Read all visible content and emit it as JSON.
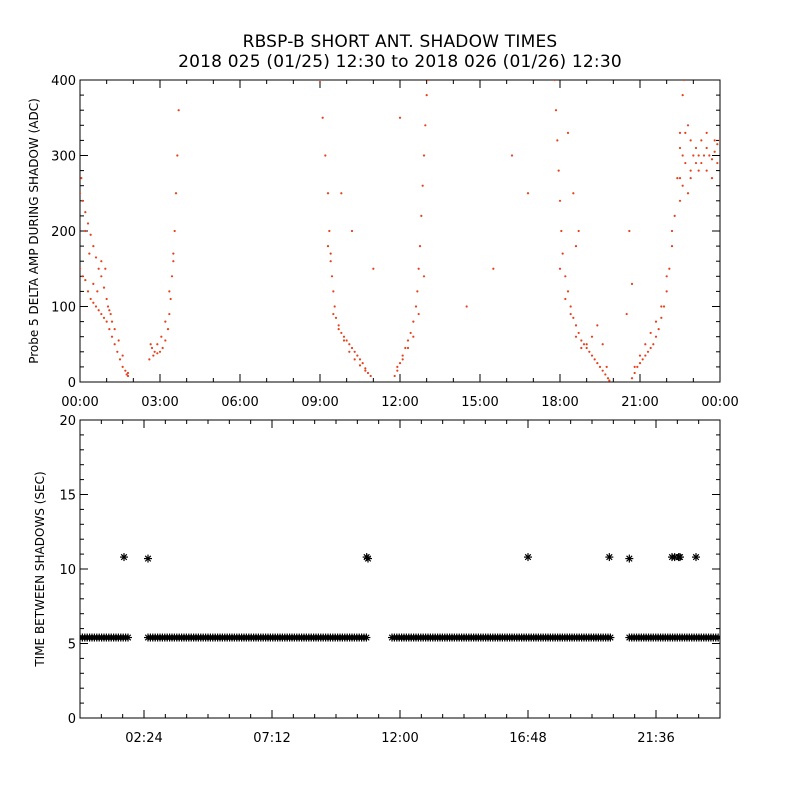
{
  "title": "RBSP-B SHORT ANT. SHADOW TIMES",
  "subtitle": "2018 025 (01/25) 12:30 to 2018 026 (01/26) 12:30",
  "colors": {
    "top_series": "#e8401c",
    "bottom_series": "#000000",
    "axes": "#000000"
  },
  "chart_data": [
    {
      "type": "scatter",
      "ylabel": "Probe 5 DELTA AMP DURING SHADOW (ADC)",
      "xlabel": "",
      "xlim": [
        0,
        24
      ],
      "ylim": [
        0,
        400
      ],
      "x_tick_labels": [
        "00:00",
        "03:00",
        "06:00",
        "09:00",
        "12:00",
        "15:00",
        "18:00",
        "21:00",
        "00:00"
      ],
      "y_tick_labels": [
        "0",
        "100",
        "200",
        "300",
        "400"
      ],
      "marker": "dot",
      "color": "#e8401c",
      "grid": false,
      "series": [
        {
          "points": [
            [
              0.0,
              150
            ],
            [
              0.1,
              140
            ],
            [
              0.2,
              135
            ],
            [
              0.3,
              120
            ],
            [
              0.4,
              110
            ],
            [
              0.5,
              105
            ],
            [
              0.6,
              100
            ],
            [
              0.7,
              95
            ],
            [
              0.8,
              90
            ],
            [
              0.9,
              85
            ],
            [
              1.0,
              80
            ],
            [
              1.1,
              70
            ],
            [
              1.2,
              60
            ],
            [
              1.3,
              50
            ],
            [
              1.4,
              40
            ],
            [
              1.5,
              30
            ],
            [
              1.6,
              20
            ],
            [
              1.7,
              15
            ],
            [
              1.75,
              10
            ],
            [
              1.8,
              8
            ],
            [
              0.0,
              250
            ],
            [
              0.1,
              240
            ],
            [
              0.2,
              225
            ],
            [
              0.3,
              210
            ],
            [
              0.4,
              195
            ],
            [
              0.5,
              180
            ],
            [
              0.6,
              165
            ],
            [
              0.7,
              150
            ],
            [
              0.8,
              140
            ],
            [
              0.9,
              125
            ],
            [
              1.0,
              110
            ],
            [
              1.1,
              95
            ],
            [
              1.2,
              80
            ],
            [
              0.05,
              270
            ],
            [
              0.2,
              200
            ],
            [
              0.35,
              170
            ],
            [
              0.5,
              130
            ],
            [
              0.65,
              120
            ],
            [
              0.8,
              160
            ],
            [
              0.95,
              150
            ],
            [
              1.05,
              100
            ],
            [
              1.15,
              90
            ],
            [
              1.3,
              70
            ],
            [
              1.45,
              55
            ],
            [
              1.6,
              35
            ],
            [
              1.8,
              12
            ],
            [
              2.65,
              50
            ],
            [
              2.7,
              45
            ],
            [
              2.8,
              40
            ],
            [
              2.9,
              38
            ],
            [
              3.0,
              40
            ],
            [
              3.1,
              45
            ],
            [
              3.2,
              55
            ],
            [
              3.3,
              70
            ],
            [
              3.35,
              90
            ],
            [
              3.4,
              110
            ],
            [
              3.45,
              140
            ],
            [
              3.5,
              170
            ],
            [
              3.55,
              200
            ],
            [
              3.6,
              250
            ],
            [
              3.65,
              300
            ],
            [
              3.7,
              360
            ],
            [
              2.6,
              30
            ],
            [
              2.75,
              35
            ],
            [
              2.9,
              50
            ],
            [
              3.05,
              60
            ],
            [
              3.2,
              80
            ],
            [
              3.35,
              120
            ],
            [
              3.5,
              160
            ],
            [
              9.0,
              400
            ],
            [
              9.1,
              350
            ],
            [
              9.2,
              300
            ],
            [
              9.3,
              250
            ],
            [
              9.35,
              200
            ],
            [
              9.4,
              170
            ],
            [
              9.45,
              140
            ],
            [
              9.5,
              120
            ],
            [
              9.55,
              100
            ],
            [
              9.6,
              85
            ],
            [
              9.7,
              75
            ],
            [
              9.8,
              65
            ],
            [
              9.9,
              60
            ],
            [
              10.0,
              55
            ],
            [
              10.1,
              50
            ],
            [
              10.2,
              45
            ],
            [
              10.3,
              40
            ],
            [
              10.4,
              35
            ],
            [
              10.5,
              30
            ],
            [
              10.6,
              25
            ],
            [
              10.7,
              18
            ],
            [
              10.8,
              12
            ],
            [
              10.9,
              8
            ],
            [
              9.3,
              180
            ],
            [
              9.4,
              160
            ],
            [
              9.5,
              90
            ],
            [
              9.7,
              70
            ],
            [
              9.9,
              55
            ],
            [
              10.1,
              40
            ],
            [
              10.3,
              30
            ],
            [
              10.5,
              22
            ],
            [
              10.7,
              15
            ],
            [
              11.8,
              8
            ],
            [
              11.9,
              15
            ],
            [
              12.0,
              25
            ],
            [
              12.1,
              35
            ],
            [
              12.2,
              45
            ],
            [
              12.3,
              55
            ],
            [
              12.4,
              65
            ],
            [
              12.5,
              80
            ],
            [
              12.6,
              100
            ],
            [
              12.65,
              120
            ],
            [
              12.7,
              150
            ],
            [
              12.75,
              180
            ],
            [
              12.8,
              220
            ],
            [
              12.85,
              260
            ],
            [
              12.9,
              300
            ],
            [
              12.95,
              340
            ],
            [
              13.0,
              380
            ],
            [
              13.05,
              400
            ],
            [
              11.9,
              20
            ],
            [
              12.1,
              30
            ],
            [
              12.3,
              45
            ],
            [
              12.5,
              60
            ],
            [
              12.7,
              90
            ],
            [
              12.9,
              140
            ],
            [
              9.8,
              250
            ],
            [
              10.2,
              200
            ],
            [
              11.0,
              150
            ],
            [
              12.0,
              350
            ],
            [
              15.5,
              150
            ],
            [
              16.2,
              300
            ],
            [
              16.8,
              250
            ],
            [
              14.5,
              100
            ],
            [
              17.8,
              400
            ],
            [
              17.85,
              360
            ],
            [
              17.9,
              320
            ],
            [
              17.95,
              280
            ],
            [
              18.0,
              240
            ],
            [
              18.05,
              200
            ],
            [
              18.1,
              170
            ],
            [
              18.2,
              140
            ],
            [
              18.3,
              120
            ],
            [
              18.4,
              100
            ],
            [
              18.5,
              85
            ],
            [
              18.6,
              75
            ],
            [
              18.7,
              65
            ],
            [
              18.8,
              55
            ],
            [
              18.9,
              50
            ],
            [
              19.0,
              45
            ],
            [
              19.1,
              40
            ],
            [
              19.2,
              35
            ],
            [
              19.3,
              30
            ],
            [
              19.4,
              25
            ],
            [
              19.5,
              20
            ],
            [
              19.6,
              15
            ],
            [
              19.7,
              10
            ],
            [
              19.8,
              5
            ],
            [
              19.85,
              2
            ],
            [
              18.0,
              150
            ],
            [
              18.2,
              110
            ],
            [
              18.4,
              90
            ],
            [
              18.6,
              60
            ],
            [
              18.8,
              45
            ],
            [
              19.0,
              50
            ],
            [
              19.2,
              60
            ],
            [
              19.4,
              75
            ],
            [
              19.6,
              50
            ],
            [
              19.75,
              20
            ],
            [
              18.5,
              250
            ],
            [
              18.3,
              330
            ],
            [
              18.6,
              180
            ],
            [
              18.7,
              200
            ],
            [
              20.7,
              5
            ],
            [
              20.8,
              12
            ],
            [
              20.9,
              20
            ],
            [
              21.0,
              25
            ],
            [
              21.1,
              30
            ],
            [
              21.2,
              35
            ],
            [
              21.3,
              40
            ],
            [
              21.4,
              45
            ],
            [
              21.5,
              50
            ],
            [
              21.6,
              60
            ],
            [
              21.7,
              70
            ],
            [
              21.8,
              85
            ],
            [
              21.9,
              100
            ],
            [
              22.0,
              120
            ],
            [
              22.1,
              150
            ],
            [
              22.2,
              180
            ],
            [
              22.3,
              220
            ],
            [
              22.4,
              270
            ],
            [
              22.5,
              330
            ],
            [
              22.6,
              380
            ],
            [
              22.65,
              400
            ],
            [
              20.8,
              20
            ],
            [
              21.0,
              35
            ],
            [
              21.2,
              50
            ],
            [
              21.4,
              65
            ],
            [
              21.6,
              80
            ],
            [
              21.8,
              100
            ],
            [
              22.0,
              140
            ],
            [
              22.2,
              200
            ],
            [
              20.6,
              200
            ],
            [
              20.7,
              130
            ],
            [
              20.5,
              90
            ],
            [
              22.5,
              270
            ],
            [
              22.6,
              300
            ],
            [
              22.7,
              330
            ],
            [
              22.8,
              340
            ],
            [
              22.9,
              320
            ],
            [
              23.0,
              300
            ],
            [
              23.1,
              290
            ],
            [
              23.2,
              280
            ],
            [
              23.3,
              290
            ],
            [
              23.4,
              300
            ],
            [
              23.5,
              310
            ],
            [
              23.6,
              300
            ],
            [
              23.7,
              295
            ],
            [
              23.8,
              305
            ],
            [
              23.9,
              315
            ],
            [
              24.0,
              320
            ],
            [
              22.5,
              310
            ],
            [
              22.7,
              290
            ],
            [
              22.9,
              280
            ],
            [
              23.1,
              310
            ],
            [
              23.3,
              320
            ],
            [
              23.5,
              280
            ],
            [
              23.7,
              270
            ],
            [
              23.9,
              290
            ],
            [
              22.6,
              260
            ],
            [
              22.9,
              270
            ],
            [
              23.2,
              300
            ],
            [
              23.5,
              330
            ],
            [
              23.8,
              320
            ],
            [
              22.5,
              240
            ],
            [
              22.8,
              250
            ]
          ]
        }
      ]
    },
    {
      "type": "scatter",
      "ylabel": "TIME BETWEEN SHADOWS (SEC)",
      "xlabel": "",
      "xlim": [
        0,
        24
      ],
      "ylim": [
        0,
        20
      ],
      "x_ticks": [
        2.4,
        7.2,
        12.0,
        16.8,
        21.6
      ],
      "x_tick_labels": [
        "02:24",
        "07:12",
        "12:00",
        "16:48",
        "21:36"
      ],
      "y_tick_labels": [
        "0",
        "5",
        "10",
        "15",
        "20"
      ],
      "marker": "asterisk",
      "color": "#000000",
      "grid": false,
      "band_value": 5.4,
      "band_segments": [
        [
          0.0,
          1.85
        ],
        [
          2.55,
          10.8
        ],
        [
          11.7,
          19.9
        ],
        [
          20.6,
          24.0
        ]
      ],
      "outliers": [
        [
          1.65,
          10.8
        ],
        [
          2.55,
          10.7
        ],
        [
          10.75,
          10.8
        ],
        [
          10.8,
          10.7
        ],
        [
          16.8,
          10.8
        ],
        [
          19.85,
          10.8
        ],
        [
          20.6,
          10.7
        ],
        [
          22.2,
          10.8
        ],
        [
          22.3,
          10.8
        ],
        [
          22.45,
          10.8
        ],
        [
          22.5,
          10.8
        ],
        [
          23.1,
          10.8
        ]
      ]
    }
  ]
}
